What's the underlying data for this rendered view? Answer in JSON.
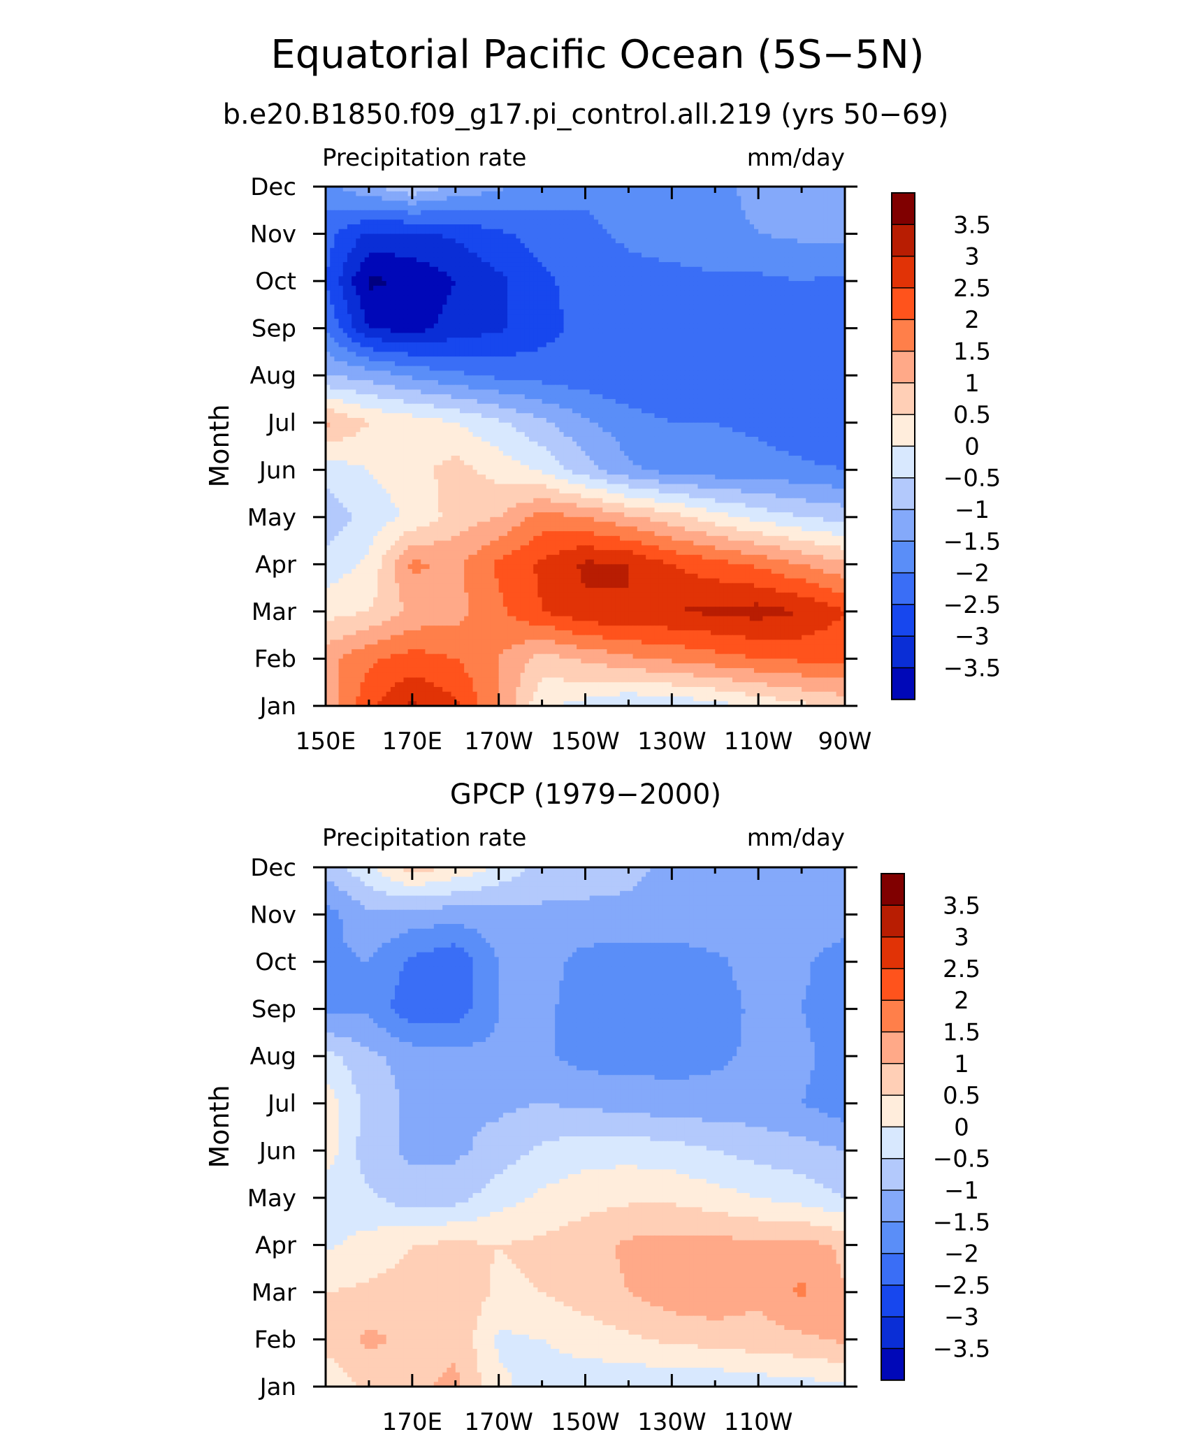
{
  "figure": {
    "title": "Equatorial Pacific Ocean (5S−5N)"
  },
  "chart_data": [
    {
      "type": "heatmap",
      "subtitle": "b.e20.B1850.f09_g17.pi_control.all.219 (yrs 50−69)",
      "left_label": "Precipitation rate",
      "right_label": "mm/day",
      "ylabel": "Month",
      "xlabel": "",
      "x_ticklabels": [
        "150E",
        "170E",
        "170W",
        "150W",
        "130W",
        "110W",
        "90W"
      ],
      "x_tick_lon": [
        150,
        170,
        190,
        210,
        230,
        250,
        270
      ],
      "xlim": [
        150,
        270
      ],
      "y_categories": [
        "Jan",
        "Feb",
        "Mar",
        "Apr",
        "May",
        "Jun",
        "Jul",
        "Aug",
        "Sep",
        "Oct",
        "Nov",
        "Dec"
      ],
      "ylim": [
        1,
        12
      ],
      "colorbar_labels": [
        "3.5",
        "3",
        "2.5",
        "2",
        "1.5",
        "1",
        "0.5",
        "0",
        "−0.5",
        "−1",
        "−1.5",
        "−2",
        "−2.5",
        "−3",
        "−3.5"
      ],
      "x_lon": [
        150,
        160,
        170,
        180,
        190,
        200,
        210,
        220,
        230,
        240,
        250,
        260,
        270
      ],
      "values": [
        [
          1.6,
          2.9,
          3.6,
          3.1,
          2.0,
          0.6,
          0.3,
          0.0,
          0.1,
          0.3,
          0.6,
          0.9,
          1.2
        ],
        [
          1.8,
          2.4,
          2.7,
          2.5,
          2.0,
          1.3,
          1.6,
          1.9,
          2.1,
          2.3,
          2.5,
          2.6,
          2.6
        ],
        [
          0.8,
          1.0,
          1.6,
          1.8,
          2.4,
          3.0,
          3.4,
          3.5,
          3.5,
          3.6,
          3.7,
          3.5,
          3.0
        ],
        [
          0.2,
          0.6,
          2.1,
          1.9,
          2.6,
          3.1,
          3.6,
          3.5,
          3.0,
          2.7,
          2.4,
          2.0,
          1.6
        ],
        [
          -0.3,
          0.2,
          0.6,
          1.2,
          1.5,
          2.2,
          2.0,
          1.6,
          1.2,
          0.7,
          0.3,
          0.0,
          -0.2
        ],
        [
          0.2,
          0.5,
          0.8,
          1.2,
          0.8,
          0.4,
          -0.3,
          -0.9,
          -1.2,
          -1.3,
          -1.3,
          -1.4,
          -1.5
        ],
        [
          1.6,
          1.0,
          0.8,
          0.5,
          0.1,
          -0.4,
          -0.9,
          -1.3,
          -1.5,
          -1.5,
          -1.6,
          -1.8,
          -2.0
        ],
        [
          -0.5,
          -0.7,
          -1.1,
          -1.4,
          -1.6,
          -1.7,
          -1.8,
          -1.9,
          -1.9,
          -1.9,
          -2.0,
          -1.8,
          -1.7
        ],
        [
          -1.5,
          -3.0,
          -3.2,
          -2.8,
          -2.6,
          -2.2,
          -1.8,
          -1.8,
          -1.9,
          -1.9,
          -1.9,
          -1.8,
          -1.8
        ],
        [
          -2.0,
          -3.6,
          -3.4,
          -3.0,
          -2.6,
          -2.1,
          -1.8,
          -1.7,
          -1.7,
          -1.6,
          -1.6,
          -1.5,
          -1.6
        ],
        [
          -1.8,
          -2.6,
          -2.6,
          -2.4,
          -2.1,
          -1.8,
          -1.6,
          -1.4,
          -1.2,
          -1.1,
          -1.0,
          -0.9,
          -0.8
        ],
        [
          -1.2,
          -0.6,
          -0.1,
          -0.6,
          -0.9,
          -1.2,
          -1.4,
          -1.4,
          -1.2,
          -1.1,
          -0.9,
          -0.8,
          -0.8
        ]
      ]
    },
    {
      "type": "heatmap",
      "subtitle": "GPCP (1979−2000)",
      "left_label": "Precipitation rate",
      "right_label": "mm/day",
      "ylabel": "Month",
      "xlabel": "",
      "x_ticklabels": [
        "170E",
        "170W",
        "150W",
        "130W",
        "110W"
      ],
      "x_tick_lon": [
        170,
        190,
        210,
        230,
        250
      ],
      "xlim": [
        150,
        270
      ],
      "y_categories": [
        "Jan",
        "Feb",
        "Mar",
        "Apr",
        "May",
        "Jun",
        "Jul",
        "Aug",
        "Sep",
        "Oct",
        "Nov",
        "Dec"
      ],
      "ylim": [
        1,
        12
      ],
      "colorbar_labels": [
        "3.5",
        "3",
        "2.5",
        "2",
        "1.5",
        "1",
        "0.5",
        "0",
        "−0.5",
        "−1",
        "−1.5",
        "−2",
        "−2.5",
        "−3",
        "−3.5"
      ],
      "x_lon": [
        150,
        160,
        170,
        180,
        190,
        200,
        210,
        220,
        230,
        240,
        250,
        260,
        270
      ],
      "values": [
        [
          0.6,
          1.1,
          1.4,
          1.6,
          0.6,
          0.3,
          0.2,
          0.1,
          0.1,
          0.1,
          0.2,
          0.3,
          0.4
        ],
        [
          1.2,
          1.6,
          1.4,
          1.4,
          0.4,
          0.5,
          0.7,
          0.9,
          1.1,
          1.2,
          1.3,
          1.4,
          1.6
        ],
        [
          1.0,
          1.1,
          1.2,
          1.4,
          0.9,
          1.0,
          1.3,
          1.5,
          1.8,
          1.9,
          1.6,
          2.1,
          1.5
        ],
        [
          0.4,
          0.7,
          1.0,
          1.1,
          1.0,
          1.1,
          1.3,
          1.6,
          1.7,
          1.7,
          1.6,
          1.7,
          1.4
        ],
        [
          0.2,
          0.1,
          -0.3,
          -0.2,
          0.3,
          0.6,
          0.8,
          0.9,
          0.9,
          0.7,
          0.5,
          0.3,
          0.0
        ],
        [
          0.8,
          -0.3,
          -0.6,
          -0.6,
          -0.3,
          0.1,
          0.3,
          0.3,
          0.2,
          0.0,
          -0.2,
          -0.3,
          -0.5
        ],
        [
          0.8,
          -0.2,
          -0.6,
          -0.6,
          -0.6,
          -0.5,
          -0.6,
          -0.7,
          -0.8,
          -0.8,
          -0.8,
          -1.0,
          -1.3
        ],
        [
          0.2,
          -0.4,
          -0.7,
          -0.8,
          -0.9,
          -0.9,
          -1.2,
          -1.2,
          -1.2,
          -1.1,
          -0.9,
          -0.9,
          -1.2
        ],
        [
          -1.2,
          -1.1,
          -1.9,
          -1.8,
          -1.0,
          -0.9,
          -1.2,
          -1.3,
          -1.2,
          -1.2,
          -0.9,
          -1.0,
          -1.3
        ],
        [
          -1.1,
          -1.0,
          -1.6,
          -1.9,
          -1.0,
          -0.8,
          -1.2,
          -1.3,
          -1.3,
          -1.1,
          -0.8,
          -0.9,
          -1.3
        ],
        [
          -1.2,
          -0.6,
          -0.7,
          -0.8,
          -0.7,
          -0.6,
          -0.6,
          -0.6,
          -0.6,
          -0.6,
          -0.6,
          -0.6,
          -0.7
        ],
        [
          -0.3,
          0.4,
          1.3,
          0.9,
          0.4,
          -0.2,
          -0.3,
          -0.4,
          -0.6,
          -0.6,
          -0.6,
          -0.5,
          -0.5
        ]
      ]
    }
  ],
  "colors": {
    "levels_low_to_high": [
      "#000080",
      "#0008b8",
      "#0a2ed6",
      "#1747ee",
      "#3a6ef6",
      "#5a8ef8",
      "#84a9fa",
      "#b3c9fc",
      "#d8e8fe",
      "#ffeddc",
      "#ffcfb6",
      "#ffa988",
      "#ff7f4a",
      "#ff531c",
      "#e13306",
      "#b81d02",
      "#800000"
    ]
  }
}
